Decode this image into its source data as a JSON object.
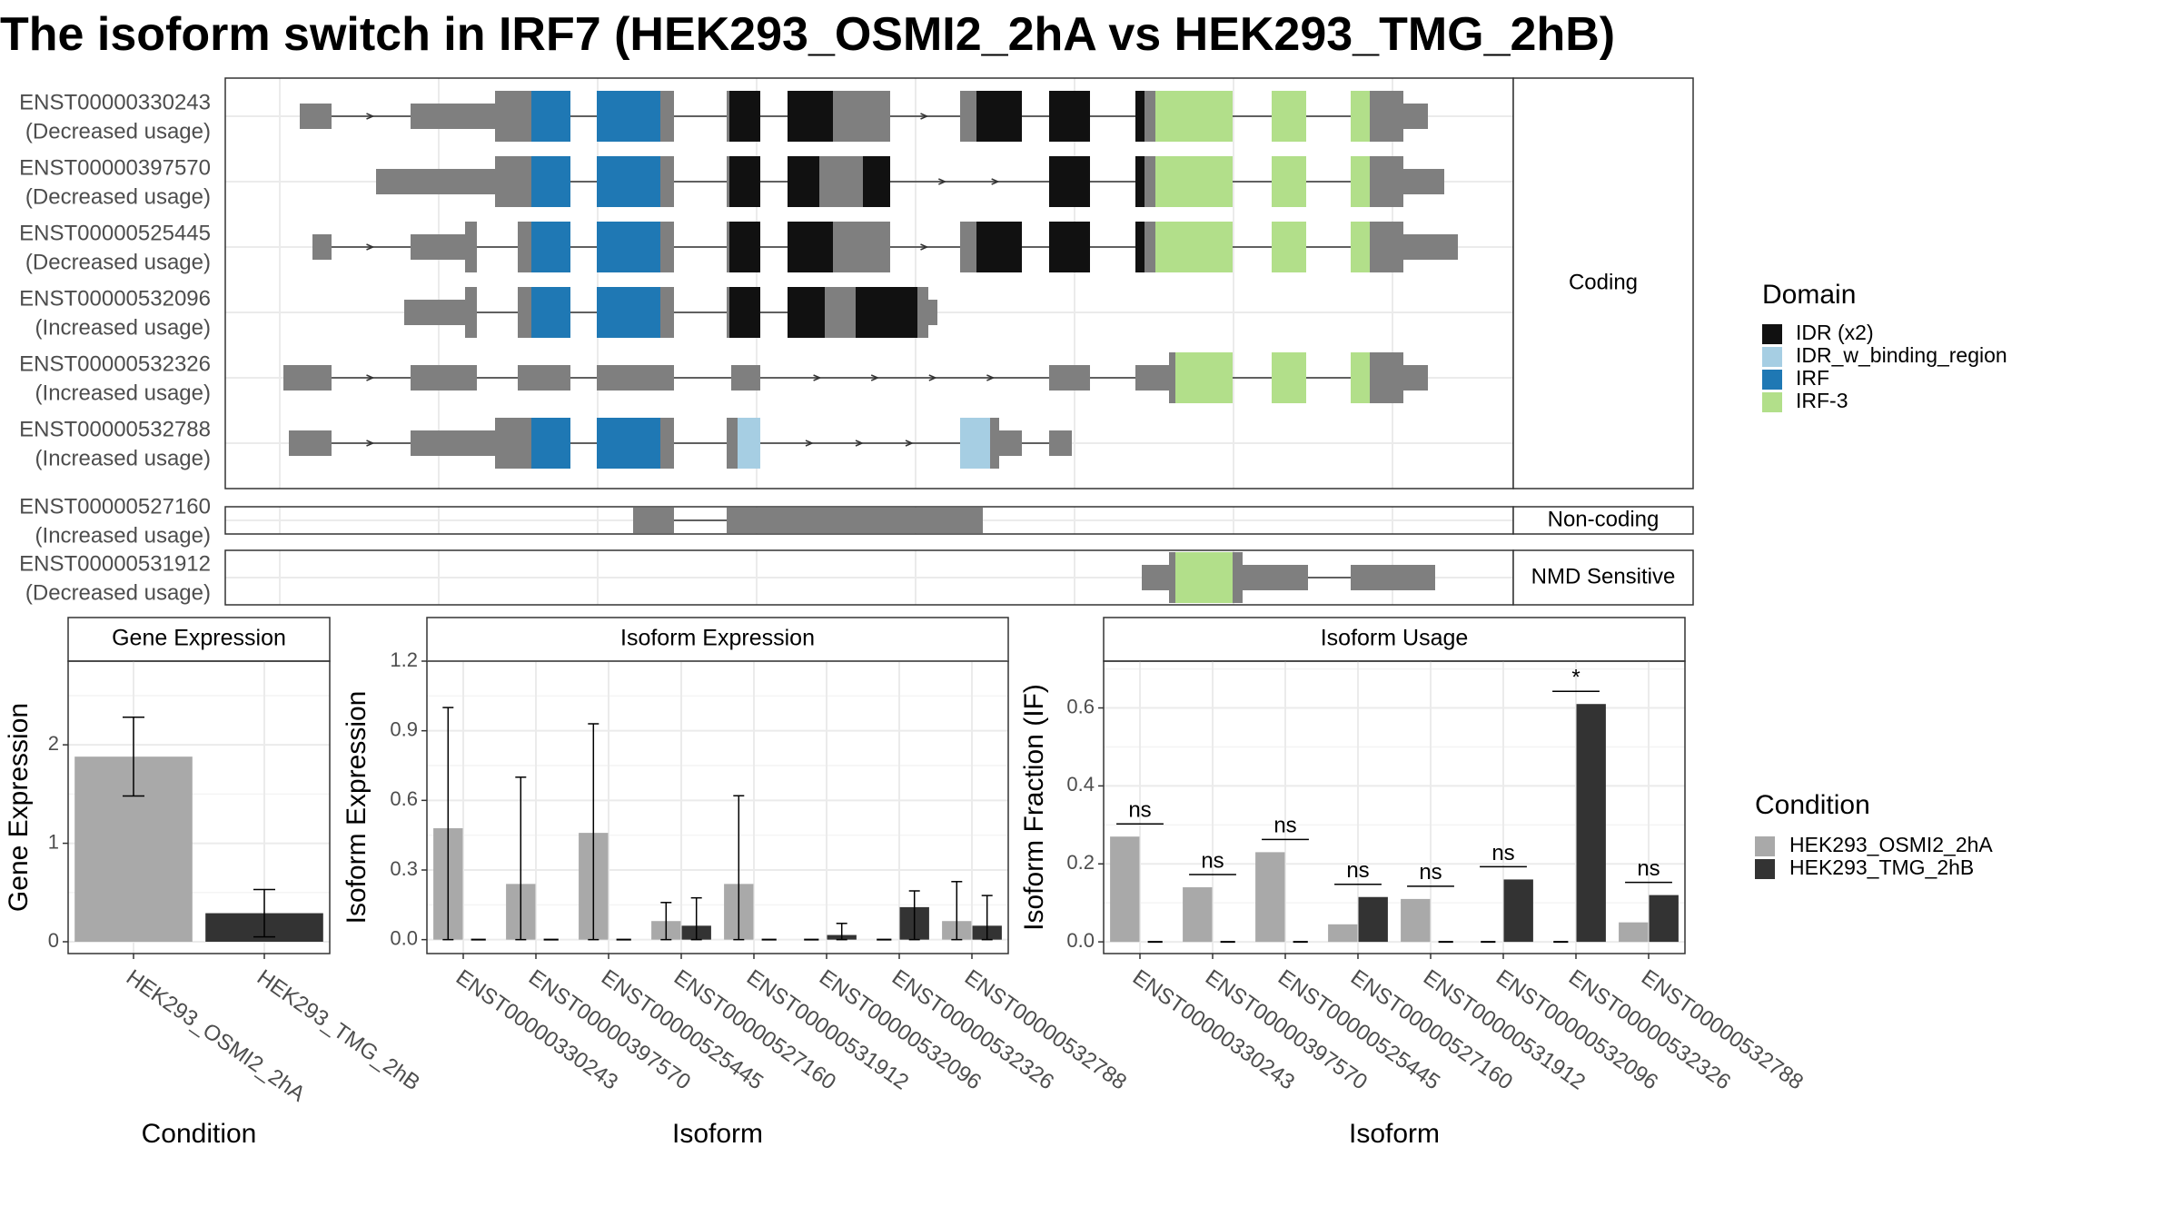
{
  "title": "The isoform switch in IRF7 (HEK293_OSMI2_2hA vs HEK293_TMG_2hB)",
  "colors": {
    "exon": "#7f7f7f",
    "intron_line": "#333333",
    "panel_border": "#333333",
    "grid_major": "#ebebeb",
    "grid_minor": "#f4f4f4",
    "IDR (x2)": "#111111",
    "IDR_w_binding_region": "#a6cee3",
    "IRF": "#1f78b4",
    "IRF-3": "#b2df8a",
    "cond_a": "#a9a9a9",
    "cond_b": "#333333"
  },
  "isoform_panels": [
    {
      "label": "Coding",
      "isoforms": [
        {
          "id": "ENST00000330243",
          "usage": "(Decreased usage)"
        },
        {
          "id": "ENST00000397570",
          "usage": "(Decreased usage)"
        },
        {
          "id": "ENST00000525445",
          "usage": "(Decreased usage)"
        },
        {
          "id": "ENST00000532096",
          "usage": "(Increased usage)"
        },
        {
          "id": "ENST00000532326",
          "usage": "(Increased usage)"
        },
        {
          "id": "ENST00000532788",
          "usage": "(Increased usage)"
        }
      ]
    },
    {
      "label": "Non-coding",
      "isoforms": [
        {
          "id": "ENST00000527160",
          "usage": "(Increased usage)"
        }
      ]
    },
    {
      "label": "NMD Sensitive",
      "isoforms": [
        {
          "id": "ENST00000531912",
          "usage": "(Decreased usage)"
        }
      ]
    }
  ],
  "domain_legend": {
    "title": "Domain",
    "items": [
      "IDR (x2)",
      "IDR_w_binding_region",
      "IRF",
      "IRF-3"
    ]
  },
  "condition_legend": {
    "title": "Condition",
    "items": [
      "HEK293_OSMI2_2hA",
      "HEK293_TMG_2hB"
    ]
  },
  "chart_data": [
    {
      "type": "bar",
      "title": "Gene Expression",
      "xlabel": "Condition",
      "ylabel": "Gene Expression",
      "categories": [
        "HEK293_OSMI2_2hA",
        "HEK293_TMG_2hB"
      ],
      "values": [
        1.88,
        0.29
      ],
      "error_low": [
        1.48,
        0.05
      ],
      "error_high": [
        2.28,
        0.53
      ],
      "ylim": [
        -0.12,
        2.85
      ],
      "yticks": [
        0,
        1,
        2
      ],
      "grid": true
    },
    {
      "type": "bar",
      "title": "Isoform Expression",
      "xlabel": "Isoform",
      "ylabel": "Isoform Expression",
      "categories": [
        "ENST00000330243",
        "ENST00000397570",
        "ENST00000525445",
        "ENST00000527160",
        "ENST00000531912",
        "ENST00000532096",
        "ENST00000532326",
        "ENST00000532788"
      ],
      "series": [
        {
          "name": "HEK293_OSMI2_2hA",
          "values": [
            0.48,
            0.24,
            0.46,
            0.08,
            0.24,
            0.0,
            0.0,
            0.08
          ],
          "error_high": [
            1.0,
            0.7,
            0.93,
            0.16,
            0.62,
            null,
            null,
            0.25
          ]
        },
        {
          "name": "HEK293_TMG_2hB",
          "values": [
            0.0,
            0.0,
            0.0,
            0.06,
            0.0,
            0.02,
            0.14,
            0.06
          ],
          "error_high": [
            null,
            null,
            null,
            0.18,
            null,
            0.07,
            0.21,
            0.19
          ]
        }
      ],
      "ylim": [
        -0.06,
        1.2
      ],
      "yticks": [
        0.0,
        0.3,
        0.6,
        0.9,
        1.2
      ],
      "grid": true
    },
    {
      "type": "bar",
      "title": "Isoform Usage",
      "xlabel": "Isoform",
      "ylabel": "Isoform Fraction (IF)",
      "categories": [
        "ENST00000330243",
        "ENST00000397570",
        "ENST00000525445",
        "ENST00000527160",
        "ENST00000531912",
        "ENST00000532096",
        "ENST00000532326",
        "ENST00000532788"
      ],
      "series": [
        {
          "name": "HEK293_OSMI2_2hA",
          "values": [
            0.27,
            0.14,
            0.23,
            0.045,
            0.11,
            0.0,
            0.0,
            0.05
          ]
        },
        {
          "name": "HEK293_TMG_2hB",
          "values": [
            0.0,
            0.0,
            0.0,
            0.115,
            0.0,
            0.16,
            0.61,
            0.12
          ]
        }
      ],
      "significance": [
        "ns",
        "ns",
        "ns",
        "ns",
        "ns",
        "ns",
        "*",
        "ns"
      ],
      "ylim": [
        -0.03,
        0.72
      ],
      "yticks": [
        0.0,
        0.2,
        0.4,
        0.6
      ],
      "grid": true
    }
  ]
}
